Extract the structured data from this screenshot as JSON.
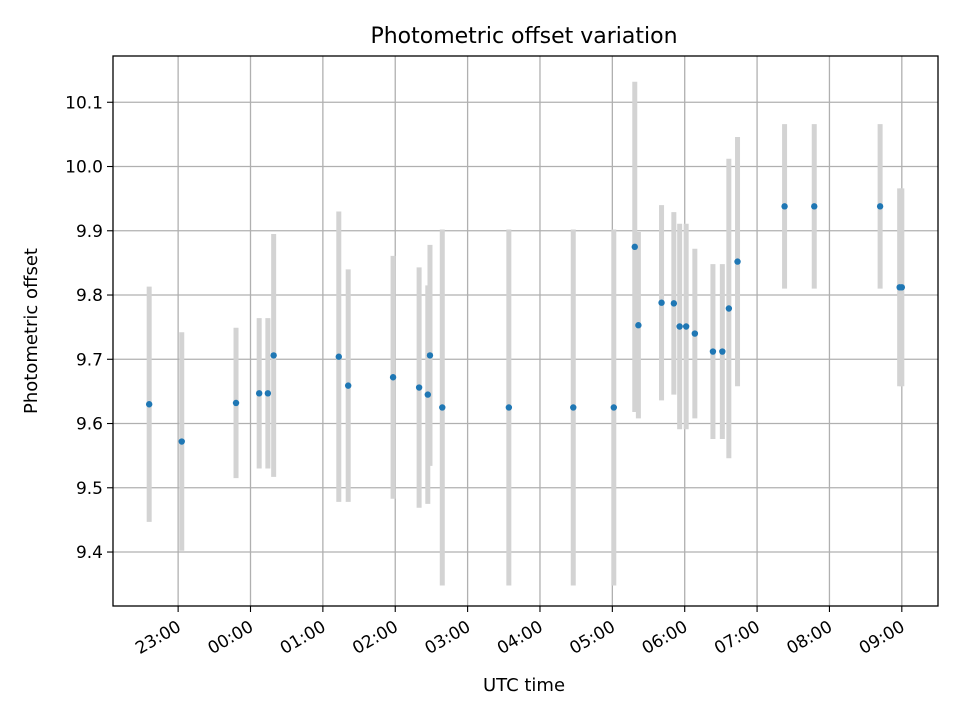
{
  "chart_data": {
    "type": "scatter",
    "title": "Photometric offset variation",
    "xlabel": "UTC time",
    "ylabel": "Photometric offset",
    "grid": true,
    "x_axis": {
      "unit": "hours since 23:00 of first night (tick labels shown as HH:MM)",
      "range": [
        -0.9,
        10.5
      ],
      "ticks": [
        {
          "value": 0,
          "label": "23:00"
        },
        {
          "value": 1,
          "label": "00:00"
        },
        {
          "value": 2,
          "label": "01:00"
        },
        {
          "value": 3,
          "label": "02:00"
        },
        {
          "value": 4,
          "label": "03:00"
        },
        {
          "value": 5,
          "label": "04:00"
        },
        {
          "value": 6,
          "label": "05:00"
        },
        {
          "value": 7,
          "label": "06:00"
        },
        {
          "value": 8,
          "label": "07:00"
        },
        {
          "value": 9,
          "label": "08:00"
        },
        {
          "value": 10,
          "label": "09:00"
        }
      ]
    },
    "y_axis": {
      "range": [
        9.316,
        10.172
      ],
      "ticks": [
        {
          "value": 9.4,
          "label": "9.4"
        },
        {
          "value": 9.5,
          "label": "9.5"
        },
        {
          "value": 9.6,
          "label": "9.6"
        },
        {
          "value": 9.7,
          "label": "9.7"
        },
        {
          "value": 9.8,
          "label": "9.8"
        },
        {
          "value": 9.9,
          "label": "9.9"
        },
        {
          "value": 10.0,
          "label": "10.0"
        },
        {
          "value": 10.1,
          "label": "10.1"
        }
      ]
    },
    "marker_color": "#1f77b4",
    "errorbar_color": "#d3d3d3",
    "points": [
      {
        "x": -0.4,
        "y": 9.63,
        "err": 0.183
      },
      {
        "x": 0.05,
        "y": 9.572,
        "err": 0.17
      },
      {
        "x": 0.8,
        "y": 9.632,
        "err": 0.117
      },
      {
        "x": 1.12,
        "y": 9.647,
        "err": 0.117
      },
      {
        "x": 1.24,
        "y": 9.647,
        "err": 0.117
      },
      {
        "x": 1.32,
        "y": 9.706,
        "err": 0.189
      },
      {
        "x": 2.22,
        "y": 9.704,
        "err": 0.226
      },
      {
        "x": 2.35,
        "y": 9.659,
        "err": 0.181
      },
      {
        "x": 2.97,
        "y": 9.672,
        "err": 0.189
      },
      {
        "x": 3.33,
        "y": 9.656,
        "err": 0.187
      },
      {
        "x": 3.45,
        "y": 9.645,
        "err": 0.17
      },
      {
        "x": 3.48,
        "y": 9.706,
        "err": 0.172
      },
      {
        "x": 3.65,
        "y": 9.625,
        "err": 0.277
      },
      {
        "x": 4.57,
        "y": 9.625,
        "err": 0.277
      },
      {
        "x": 5.46,
        "y": 9.625,
        "err": 0.277
      },
      {
        "x": 6.02,
        "y": 9.625,
        "err": 0.277
      },
      {
        "x": 6.31,
        "y": 9.875,
        "err": 0.257
      },
      {
        "x": 6.36,
        "y": 9.753,
        "err": 0.145
      },
      {
        "x": 6.68,
        "y": 9.788,
        "err": 0.152
      },
      {
        "x": 6.85,
        "y": 9.787,
        "err": 0.142
      },
      {
        "x": 6.93,
        "y": 9.751,
        "err": 0.16
      },
      {
        "x": 7.02,
        "y": 9.751,
        "err": 0.16
      },
      {
        "x": 7.14,
        "y": 9.74,
        "err": 0.132
      },
      {
        "x": 7.39,
        "y": 9.712,
        "err": 0.136
      },
      {
        "x": 7.52,
        "y": 9.712,
        "err": 0.136
      },
      {
        "x": 7.61,
        "y": 9.779,
        "err": 0.233
      },
      {
        "x": 7.73,
        "y": 9.852,
        "err": 0.194
      },
      {
        "x": 8.38,
        "y": 9.938,
        "err": 0.128
      },
      {
        "x": 8.79,
        "y": 9.938,
        "err": 0.128
      },
      {
        "x": 9.7,
        "y": 9.938,
        "err": 0.128
      },
      {
        "x": 9.97,
        "y": 9.812,
        "err": 0.154
      },
      {
        "x": 10.0,
        "y": 9.812,
        "err": 0.154
      }
    ]
  }
}
